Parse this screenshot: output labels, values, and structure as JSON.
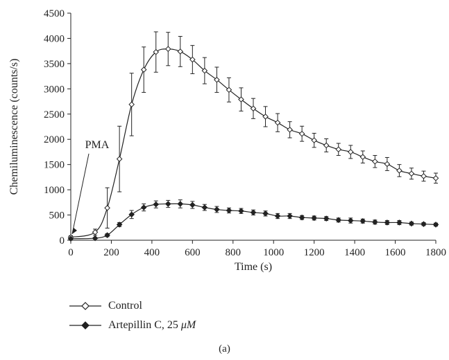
{
  "chart_data": {
    "type": "line",
    "xlabel": "Time (s)",
    "ylabel": "Chemiluminescence (counts/s)",
    "xlim": [
      0,
      1800
    ],
    "ylim": [
      0,
      4500
    ],
    "x_ticks": [
      "0",
      "200",
      "400",
      "600",
      "800",
      "1000",
      "1200",
      "1400",
      "1600",
      "1800"
    ],
    "y_ticks": [
      "0",
      "500",
      "1000",
      "1500",
      "2000",
      "2500",
      "3000",
      "3500",
      "4000",
      "4500"
    ],
    "grid": false,
    "legend_position": "bottom",
    "annotation": "PMA",
    "x": [
      0,
      120,
      180,
      240,
      300,
      360,
      420,
      480,
      540,
      600,
      660,
      720,
      780,
      840,
      900,
      960,
      1020,
      1080,
      1140,
      1200,
      1260,
      1320,
      1380,
      1440,
      1500,
      1560,
      1620,
      1680,
      1740,
      1800
    ],
    "series": [
      {
        "name": "Control",
        "marker": "open-diamond",
        "values": [
          60,
          160,
          640,
          1610,
          2690,
          3380,
          3730,
          3790,
          3740,
          3580,
          3360,
          3180,
          2980,
          2790,
          2610,
          2450,
          2330,
          2190,
          2110,
          1980,
          1880,
          1800,
          1750,
          1650,
          1560,
          1510,
          1380,
          1320,
          1270,
          1230
        ],
        "errors": [
          30,
          60,
          400,
          650,
          620,
          450,
          400,
          330,
          300,
          280,
          260,
          250,
          240,
          230,
          200,
          200,
          180,
          160,
          150,
          140,
          130,
          120,
          130,
          120,
          120,
          130,
          120,
          110,
          100,
          100
        ]
      },
      {
        "name": "Artepillin C, 25 μM",
        "marker": "filled-diamond",
        "values": [
          30,
          40,
          100,
          310,
          510,
          650,
          710,
          720,
          720,
          700,
          650,
          610,
          590,
          580,
          550,
          530,
          480,
          480,
          450,
          440,
          430,
          400,
          390,
          380,
          360,
          350,
          350,
          330,
          320,
          310
        ],
        "errors": [
          10,
          15,
          30,
          40,
          80,
          70,
          70,
          70,
          80,
          70,
          60,
          60,
          50,
          50,
          50,
          50,
          50,
          50,
          40,
          40,
          40,
          40,
          50,
          40,
          40,
          40,
          40,
          30,
          30,
          30
        ]
      }
    ]
  },
  "legend": {
    "control_label": "Control",
    "artepillin_label_prefix": "Artepillin C, 25 ",
    "artepillin_label_unit": "μM"
  },
  "caption": "(a)"
}
